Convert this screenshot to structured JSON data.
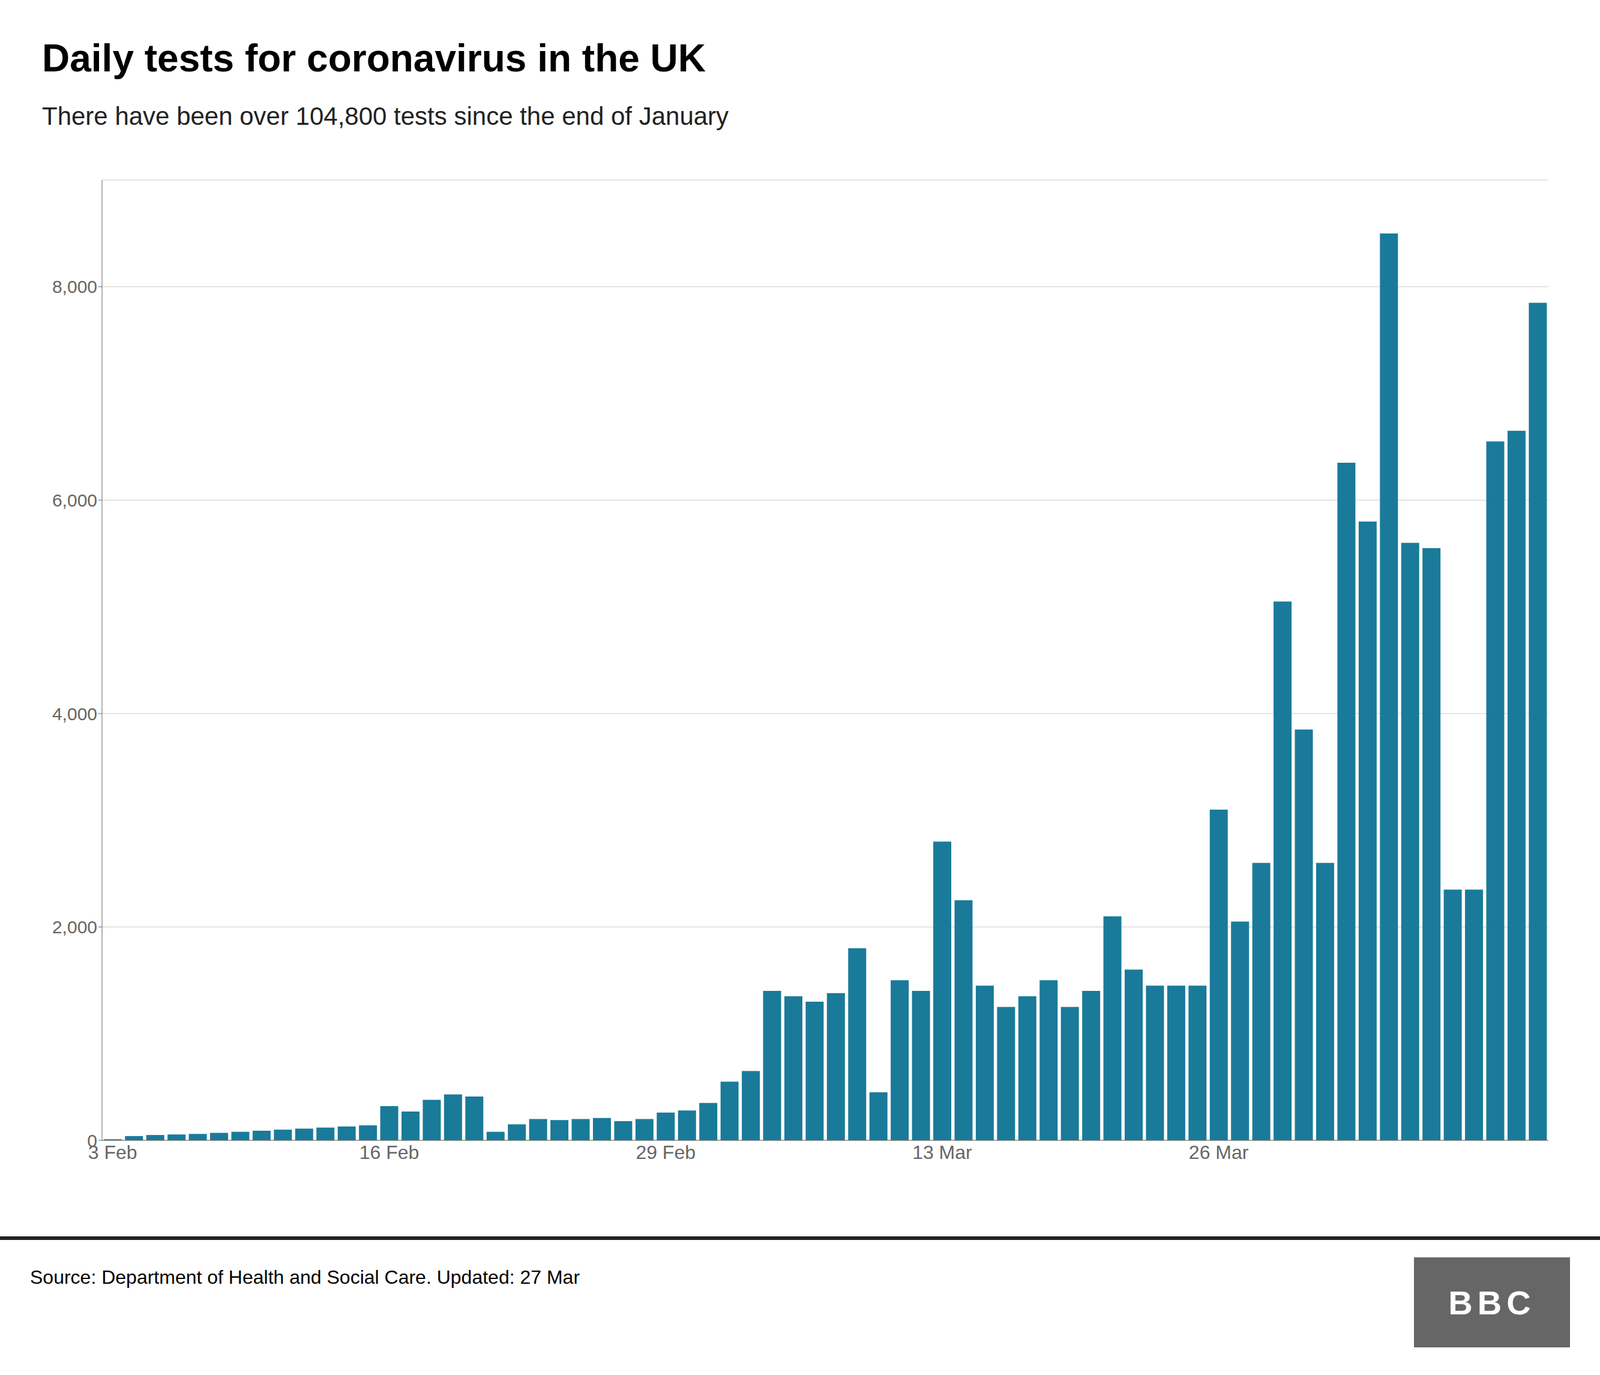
{
  "chart_data": {
    "type": "bar",
    "title": "Daily tests for coronavirus in the UK",
    "subtitle": "There have been over 104,800 tests since the end of January",
    "annotations": [
      "Source: Department of Health and Social Care. Updated: 27 Mar",
      "BBC"
    ],
    "categories": [
      "3 Feb",
      null,
      null,
      null,
      null,
      null,
      null,
      null,
      null,
      null,
      null,
      null,
      null,
      "16 Feb",
      null,
      null,
      null,
      null,
      null,
      null,
      null,
      null,
      null,
      null,
      null,
      null,
      "29 Feb",
      null,
      null,
      null,
      null,
      null,
      null,
      null,
      null,
      null,
      null,
      null,
      null,
      "13 Mar",
      null,
      null,
      null,
      null,
      null,
      null,
      null,
      null,
      null,
      null,
      null,
      null,
      "26 Mar",
      null,
      null,
      null,
      null,
      null,
      null,
      null,
      null,
      null,
      null,
      null,
      null,
      null,
      null,
      null
    ],
    "values": [
      10,
      40,
      50,
      55,
      60,
      70,
      80,
      90,
      100,
      110,
      120,
      130,
      140,
      320,
      270,
      380,
      430,
      410,
      80,
      150,
      200,
      190,
      200,
      210,
      180,
      200,
      260,
      280,
      350,
      550,
      650,
      1400,
      1350,
      1300,
      1380,
      1800,
      450,
      1500,
      1400,
      2800,
      2250,
      1450,
      1250,
      1350,
      1500,
      1250,
      1400,
      2100,
      1600,
      1450,
      1450,
      1450,
      3100,
      2050,
      2600,
      5050,
      3850,
      2600,
      6350,
      5800,
      8500,
      5600,
      5550,
      2350,
      2350,
      6550,
      6650,
      7850
    ],
    "color": "#1a7a9a",
    "ylim": [
      0,
      9000
    ],
    "yticks": [
      0,
      {
        "value": 2000,
        "label": "2,000"
      },
      {
        "value": 4000,
        "label": "4,000"
      },
      {
        "value": 6000,
        "label": "6,000"
      },
      {
        "value": 8000,
        "label": "8,000"
      }
    ],
    "grid": true
  }
}
